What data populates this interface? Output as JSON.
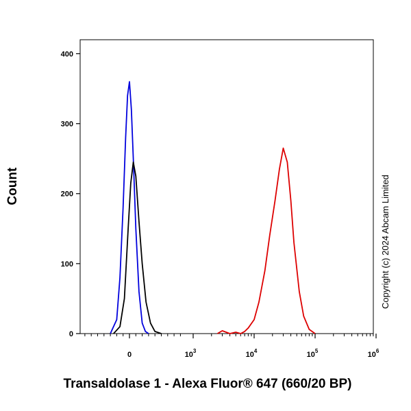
{
  "chart_data": {
    "type": "line",
    "xlabel": "Transaldolase 1 - Alexa Fluor® 647 (660/20 BP)",
    "ylabel": "Count",
    "x_scale": "biexponential",
    "ylim": [
      0,
      420
    ],
    "y_ticks": [
      0,
      100,
      200,
      300,
      400
    ],
    "x_ticks": [
      {
        "base": "0",
        "exp": ""
      },
      {
        "base": "10",
        "exp": "3"
      },
      {
        "base": "10",
        "exp": "4"
      },
      {
        "base": "10",
        "exp": "5"
      },
      {
        "base": "10",
        "exp": "6"
      }
    ],
    "grid": false,
    "legend": "none",
    "series": [
      {
        "color": "#0000dd",
        "x": [
          -300,
          -200,
          -150,
          -100,
          -60,
          -30,
          0,
          30,
          60,
          100,
          150,
          200,
          250,
          300
        ],
        "y": [
          0,
          20,
          80,
          180,
          280,
          340,
          360,
          320,
          250,
          150,
          60,
          15,
          3,
          0
        ]
      },
      {
        "color": "#000000",
        "x": [
          -250,
          -150,
          -80,
          -20,
          20,
          60,
          100,
          150,
          200,
          260,
          330,
          400,
          500
        ],
        "y": [
          0,
          10,
          50,
          150,
          215,
          245,
          225,
          160,
          100,
          45,
          15,
          3,
          0
        ]
      },
      {
        "color": "#dd0000",
        "x": [
          2500,
          3000,
          4000,
          5000,
          6000,
          7000,
          8000,
          10000,
          12000,
          15000,
          18000,
          22000,
          26000,
          30000,
          35000,
          40000,
          45000,
          55000,
          65000,
          80000,
          100000
        ],
        "y": [
          0,
          4,
          0,
          2,
          0,
          3,
          8,
          20,
          45,
          90,
          140,
          190,
          235,
          265,
          245,
          190,
          130,
          60,
          25,
          6,
          0
        ]
      }
    ]
  },
  "copyright": "Copyright (c) 2024 Abcam Limited"
}
